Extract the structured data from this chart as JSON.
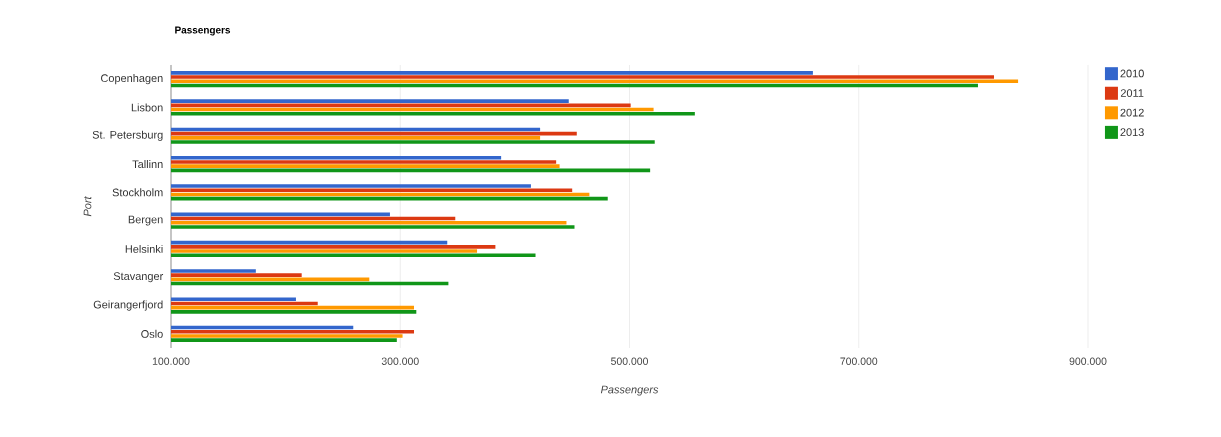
{
  "chart_data": {
    "type": "bar",
    "orientation": "horizontal",
    "title": "Passengers",
    "xlabel": "Passengers",
    "ylabel": "Port",
    "categories": [
      "Copenhagen",
      "Lisbon",
      "St. Petersburg",
      "Tallinn",
      "Stockholm",
      "Bergen",
      "Helsinki",
      "Stavanger",
      "Geirangerfjord",
      "Oslo"
    ],
    "series": [
      {
        "name": "2010",
        "color": "#3366cc",
        "values": [
          660000,
          447000,
          422000,
          388000,
          414000,
          291000,
          341000,
          174000,
          209000,
          259000
        ]
      },
      {
        "name": "2011",
        "color": "#dc3912",
        "values": [
          818000,
          501000,
          454000,
          436000,
          450000,
          348000,
          383000,
          214000,
          228000,
          312000
        ]
      },
      {
        "name": "2012",
        "color": "#ff9900",
        "values": [
          839000,
          521000,
          422000,
          439000,
          465000,
          445000,
          367000,
          273000,
          312000,
          302000
        ]
      },
      {
        "name": "2013",
        "color": "#109618",
        "values": [
          804000,
          557000,
          522000,
          518000,
          481000,
          452000,
          418000,
          342000,
          314000,
          297000
        ]
      }
    ],
    "xlim": [
      100000,
      900000
    ],
    "xticks": [
      {
        "value": 100000,
        "label": "100.000"
      },
      {
        "value": 300000,
        "label": "300.000"
      },
      {
        "value": 500000,
        "label": "500.000"
      },
      {
        "value": 700000,
        "label": "700.000"
      },
      {
        "value": 900000,
        "label": "900.000"
      }
    ],
    "grid": "x",
    "legend": "top right"
  }
}
